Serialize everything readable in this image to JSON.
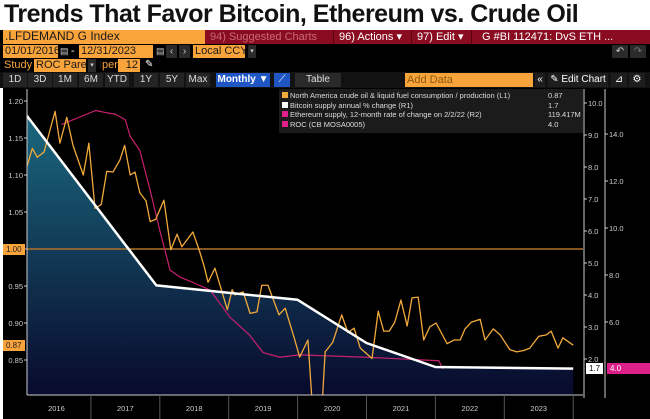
{
  "title": "Trends That Favor Bitcoin, Ethereum vs. Crude Oil",
  "header": {
    "security": ".LFDEMAND G Index",
    "suggested": "94) Suggested Charts",
    "actions": "96) Actions ▾",
    "edit": "97) Edit ▾",
    "chart_id": "G #BI 112471: DvS ETH ..."
  },
  "dates": {
    "start": "01/01/2016",
    "end": "12/31/2023",
    "currency": "Local CCY"
  },
  "study": {
    "label": "Study",
    "value": "ROC Parent I",
    "per_label": "per",
    "per_value": "12"
  },
  "toolbar": {
    "periods": [
      "1D",
      "3D",
      "1M",
      "6M",
      "YTD",
      "1Y",
      "5Y",
      "Max"
    ],
    "frequency": "Monthly ▼",
    "table": "Table",
    "add_data_placeholder": "Add Data",
    "collapse": "«",
    "edit_chart": "✎ Edit Chart"
  },
  "colors": {
    "oil": "#f2a93b",
    "bitcoin": "#ffffff",
    "ethereum": "#e0208a",
    "roc": "#e0208a",
    "header_red": "#8a0c21",
    "field_orange": "#f9a33b",
    "fill_top": "#1b6a80",
    "fill_bottom": "#080a2c"
  },
  "legend": [
    {
      "label": "North America crude oil & liquid fuel consumption / production (L1)",
      "value": "0.87",
      "color": "#f2a93b"
    },
    {
      "label": "Bitcoin supply annual % change (R1)",
      "value": "1.7",
      "color": "#ffffff"
    },
    {
      "label": "Ethereum supply, 12-month rate of change on 2/2/22 (R2)",
      "value": "119.417M",
      "color": "#e0208a"
    },
    {
      "label": "ROC (CB MOSA0005)",
      "value": "4.0",
      "color": "#e0208a"
    }
  ],
  "chart_data": {
    "type": "line",
    "x_ticks": [
      "2016",
      "2017",
      "2018",
      "2019",
      "2020",
      "2021",
      "2022",
      "2023"
    ],
    "xlim": [
      2016,
      2024
    ],
    "left_axis": {
      "ticks": [
        "1.20",
        "1.15",
        "1.10",
        "1.05",
        "1.00",
        "0.95",
        "0.90",
        "0.85"
      ],
      "ylim": [
        0.81,
        1.22
      ],
      "reference_line": 1.0,
      "reference_label": "1.00",
      "last_label": "0.87"
    },
    "right_axis_1": {
      "ticks": [
        "10.0",
        "9.0",
        "8.0",
        "7.0",
        "6.0",
        "5.0",
        "4.0",
        "3.0",
        "2.0"
      ],
      "last_label": "1.7"
    },
    "right_axis_2": {
      "ticks": [
        "14.0",
        "12.0",
        "10.0",
        "8.0",
        "6.0"
      ],
      "last_label": "4.0"
    },
    "series": [
      {
        "name": "North America crude oil & liquid fuel consumption / production (L1)",
        "axis": "left",
        "points": [
          [
            2016.0,
            1.089
          ],
          [
            2016.15,
            1.136
          ],
          [
            2016.22,
            1.124
          ],
          [
            2016.32,
            1.131
          ],
          [
            2016.48,
            1.186
          ],
          [
            2016.55,
            1.143
          ],
          [
            2016.65,
            1.178
          ],
          [
            2016.74,
            1.14
          ],
          [
            2016.89,
            1.1
          ],
          [
            2016.97,
            1.143
          ],
          [
            2017.06,
            1.055
          ],
          [
            2017.15,
            1.06
          ],
          [
            2017.23,
            1.105
          ],
          [
            2017.32,
            1.104
          ],
          [
            2017.42,
            1.12
          ],
          [
            2017.49,
            1.14
          ],
          [
            2017.57,
            1.1
          ],
          [
            2017.64,
            1.104
          ],
          [
            2017.71,
            1.076
          ],
          [
            2017.8,
            1.065
          ],
          [
            2017.86,
            1.037
          ],
          [
            2017.94,
            1.04
          ],
          [
            2018.06,
            1.066
          ],
          [
            2018.16,
            0.999
          ],
          [
            2018.25,
            1.02
          ],
          [
            2018.32,
            1.003
          ],
          [
            2018.48,
            1.023
          ],
          [
            2018.57,
            0.999
          ],
          [
            2018.64,
            0.978
          ],
          [
            2018.7,
            0.955
          ],
          [
            2018.8,
            0.974
          ],
          [
            2018.98,
            0.918
          ],
          [
            2019.05,
            0.945
          ],
          [
            2019.09,
            0.938
          ],
          [
            2019.21,
            0.942
          ],
          [
            2019.31,
            0.913
          ],
          [
            2019.41,
            0.915
          ],
          [
            2019.48,
            0.951
          ],
          [
            2019.57,
            0.951
          ],
          [
            2019.73,
            0.911
          ],
          [
            2019.82,
            0.92
          ],
          [
            2019.96,
            0.877
          ],
          [
            2020.03,
            0.854
          ],
          [
            2020.15,
            0.877
          ],
          [
            2020.22,
            0.78
          ],
          [
            2020.35,
            0.78
          ],
          [
            2020.4,
            0.861
          ],
          [
            2020.51,
            0.874
          ],
          [
            2020.64,
            0.911
          ],
          [
            2020.73,
            0.887
          ],
          [
            2020.82,
            0.893
          ],
          [
            2020.91,
            0.866
          ],
          [
            2021.08,
            0.852
          ],
          [
            2021.17,
            0.916
          ],
          [
            2021.25,
            0.889
          ],
          [
            2021.33,
            0.889
          ],
          [
            2021.41,
            0.901
          ],
          [
            2021.5,
            0.931
          ],
          [
            2021.59,
            0.896
          ],
          [
            2021.66,
            0.934
          ],
          [
            2021.75,
            0.935
          ],
          [
            2021.83,
            0.877
          ],
          [
            2021.92,
            0.895
          ],
          [
            2022.01,
            0.9
          ],
          [
            2022.17,
            0.872
          ],
          [
            2022.27,
            0.877
          ],
          [
            2022.36,
            0.877
          ],
          [
            2022.43,
            0.892
          ],
          [
            2022.52,
            0.901
          ],
          [
            2022.65,
            0.905
          ],
          [
            2022.72,
            0.877
          ],
          [
            2022.84,
            0.892
          ],
          [
            2022.94,
            0.884
          ],
          [
            2023.08,
            0.864
          ],
          [
            2023.18,
            0.861
          ],
          [
            2023.29,
            0.863
          ],
          [
            2023.37,
            0.866
          ],
          [
            2023.5,
            0.882
          ],
          [
            2023.61,
            0.884
          ],
          [
            2023.68,
            0.889
          ],
          [
            2023.78,
            0.866
          ],
          [
            2023.85,
            0.88
          ],
          [
            2024.0,
            0.87
          ]
        ]
      },
      {
        "name": "Bitcoin supply annual % change (R1)",
        "axis": "right1",
        "points": [
          [
            2016.0,
            9.8
          ],
          [
            2017.95,
            4.3
          ],
          [
            2020.0,
            3.85
          ],
          [
            2021.0,
            2.5
          ],
          [
            2022.0,
            1.75
          ],
          [
            2024.0,
            1.7
          ]
        ]
      },
      {
        "name": "ROC (CB MOSA0005)",
        "axis": "right2",
        "points": [
          [
            2016.57,
            14.4
          ],
          [
            2017.07,
            15.0
          ],
          [
            2017.23,
            14.9
          ],
          [
            2017.35,
            14.85
          ],
          [
            2017.5,
            14.6
          ],
          [
            2017.57,
            13.9
          ],
          [
            2017.71,
            13.3
          ],
          [
            2017.86,
            11.6
          ],
          [
            2018.0,
            9.9
          ],
          [
            2018.15,
            8.2
          ],
          [
            2018.3,
            7.9
          ],
          [
            2018.5,
            7.66
          ],
          [
            2018.73,
            7.36
          ],
          [
            2019.02,
            6.2
          ],
          [
            2019.3,
            5.45
          ],
          [
            2019.5,
            4.7
          ],
          [
            2019.74,
            4.5
          ],
          [
            2020.03,
            4.6
          ],
          [
            2021.0,
            4.5
          ],
          [
            2022.05,
            4.35
          ],
          [
            2022.11,
            4.0
          ]
        ]
      }
    ]
  }
}
